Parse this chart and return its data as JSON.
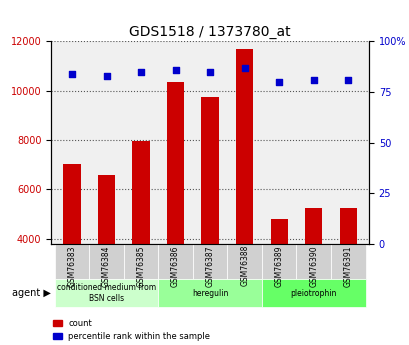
{
  "title": "GDS1518 / 1373780_at",
  "samples": [
    "GSM76383",
    "GSM76384",
    "GSM76385",
    "GSM76386",
    "GSM76387",
    "GSM76388",
    "GSM76389",
    "GSM76390",
    "GSM76391"
  ],
  "counts": [
    7050,
    6600,
    7950,
    10350,
    9750,
    11700,
    4800,
    5250,
    5250
  ],
  "percentiles": [
    84,
    83,
    85,
    86,
    85,
    87,
    80,
    81,
    81
  ],
  "ylim_left": [
    3800,
    12000
  ],
  "ylim_right": [
    0,
    100
  ],
  "yticks_left": [
    4000,
    6000,
    8000,
    10000,
    12000
  ],
  "yticks_right": [
    0,
    25,
    50,
    75,
    100
  ],
  "bar_color": "#cc0000",
  "dot_color": "#0000cc",
  "grid_color": "#555555",
  "bg_color": "#f0f0f0",
  "agent_groups": [
    {
      "label": "conditioned medium from\nBSN cells",
      "start": 0,
      "end": 3,
      "color": "#ccffcc"
    },
    {
      "label": "heregulin",
      "start": 3,
      "end": 6,
      "color": "#99ff99"
    },
    {
      "label": "pleiotrophin",
      "start": 6,
      "end": 9,
      "color": "#66ff66"
    }
  ],
  "legend_count_label": "count",
  "legend_pct_label": "percentile rank within the sample",
  "agent_label": "agent",
  "left_label_color": "#cc0000",
  "right_label_color": "#0000cc"
}
